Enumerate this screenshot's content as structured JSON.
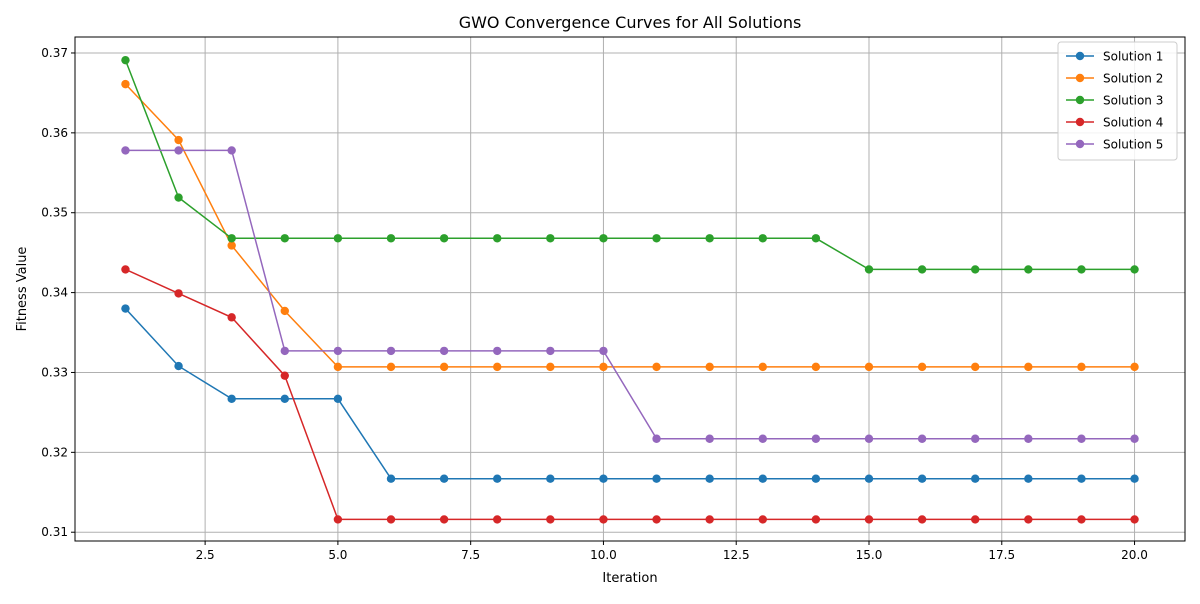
{
  "chart_data": {
    "type": "line",
    "title": "GWO Convergence Curves for All Solutions",
    "xlabel": "Iteration",
    "ylabel": "Fitness Value",
    "xlim": [
      0.05,
      20.95
    ],
    "ylim": [
      0.3089,
      0.372
    ],
    "xticks": [
      2.5,
      5.0,
      7.5,
      10.0,
      12.5,
      15.0,
      17.5,
      20.0
    ],
    "xtick_labels": [
      "2.5",
      "5.0",
      "7.5",
      "10.0",
      "12.5",
      "15.0",
      "17.5",
      "20.0"
    ],
    "yticks": [
      0.31,
      0.32,
      0.33,
      0.34,
      0.35,
      0.36,
      0.37
    ],
    "ytick_labels": [
      "0.31",
      "0.32",
      "0.33",
      "0.34",
      "0.35",
      "0.36",
      "0.37"
    ],
    "grid": true,
    "legend_position": "top-right",
    "x": [
      1,
      2,
      3,
      4,
      5,
      6,
      7,
      8,
      9,
      10,
      11,
      12,
      13,
      14,
      15,
      16,
      17,
      18,
      19,
      20
    ],
    "series": [
      {
        "name": "Solution 1",
        "color": "#1f77b4",
        "values": [
          0.338,
          0.3308,
          0.3267,
          0.3267,
          0.3267,
          0.3167,
          0.3167,
          0.3167,
          0.3167,
          0.3167,
          0.3167,
          0.3167,
          0.3167,
          0.3167,
          0.3167,
          0.3167,
          0.3167,
          0.3167,
          0.3167,
          0.3167
        ]
      },
      {
        "name": "Solution 2",
        "color": "#ff7f0e",
        "values": [
          0.3661,
          0.3591,
          0.3459,
          0.3377,
          0.3307,
          0.3307,
          0.3307,
          0.3307,
          0.3307,
          0.3307,
          0.3307,
          0.3307,
          0.3307,
          0.3307,
          0.3307,
          0.3307,
          0.3307,
          0.3307,
          0.3307,
          0.3307
        ]
      },
      {
        "name": "Solution 3",
        "color": "#2ca02c",
        "values": [
          0.3691,
          0.3519,
          0.3468,
          0.3468,
          0.3468,
          0.3468,
          0.3468,
          0.3468,
          0.3468,
          0.3468,
          0.3468,
          0.3468,
          0.3468,
          0.3468,
          0.3429,
          0.3429,
          0.3429,
          0.3429,
          0.3429,
          0.3429
        ]
      },
      {
        "name": "Solution 4",
        "color": "#d62728",
        "values": [
          0.3429,
          0.3399,
          0.3369,
          0.3296,
          0.3116,
          0.3116,
          0.3116,
          0.3116,
          0.3116,
          0.3116,
          0.3116,
          0.3116,
          0.3116,
          0.3116,
          0.3116,
          0.3116,
          0.3116,
          0.3116,
          0.3116,
          0.3116
        ]
      },
      {
        "name": "Solution 5",
        "color": "#9467bd",
        "values": [
          0.3578,
          0.3578,
          0.3578,
          0.3327,
          0.3327,
          0.3327,
          0.3327,
          0.3327,
          0.3327,
          0.3327,
          0.3217,
          0.3217,
          0.3217,
          0.3217,
          0.3217,
          0.3217,
          0.3217,
          0.3217,
          0.3217,
          0.3217
        ]
      }
    ]
  }
}
